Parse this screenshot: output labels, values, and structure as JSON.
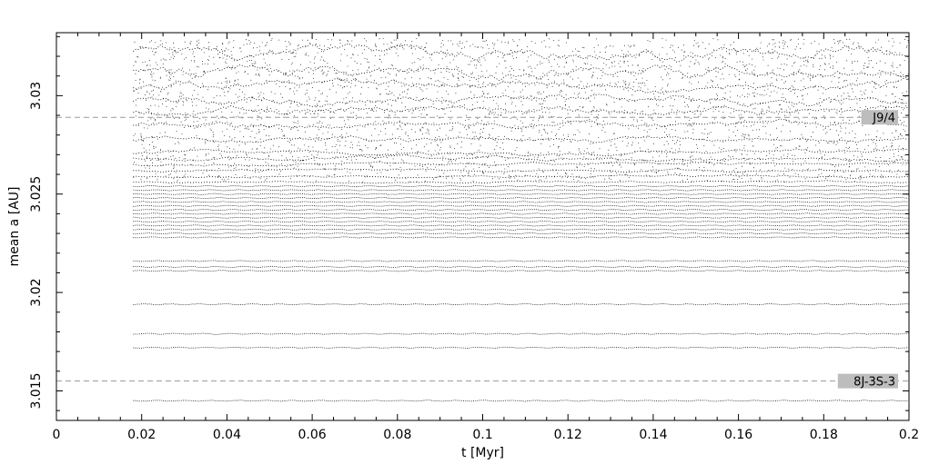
{
  "chart_data": {
    "type": "scatter",
    "title": "",
    "xlabel": "t [Myr]",
    "ylabel": "mean a [AU]",
    "xlim": [
      0,
      0.2
    ],
    "ylim": [
      3.0135,
      3.0332
    ],
    "x_ticks": [
      {
        "value": 0,
        "label": "0"
      },
      {
        "value": 0.02,
        "label": "0.02"
      },
      {
        "value": 0.04,
        "label": "0.04"
      },
      {
        "value": 0.06,
        "label": "0.06"
      },
      {
        "value": 0.08,
        "label": "0.08"
      },
      {
        "value": 0.1,
        "label": "0.1"
      },
      {
        "value": 0.12,
        "label": "0.12"
      },
      {
        "value": 0.14,
        "label": "0.14"
      },
      {
        "value": 0.16,
        "label": "0.16"
      },
      {
        "value": 0.18,
        "label": "0.18"
      },
      {
        "value": 0.2,
        "label": "0.2"
      }
    ],
    "y_ticks": [
      {
        "value": 3.015,
        "label": "3.015"
      },
      {
        "value": 3.02,
        "label": "3.02"
      },
      {
        "value": 3.025,
        "label": "3.025"
      },
      {
        "value": 3.03,
        "label": "3.03"
      }
    ],
    "grid": false,
    "data_start_t": 0.018,
    "stable_tracks_a": [
      3.0145,
      3.0172,
      3.0179,
      3.0194,
      3.0211,
      3.0213,
      3.0216,
      3.0228,
      3.023,
      3.0232,
      3.0234,
      3.0236,
      3.0238,
      3.024,
      3.0242,
      3.0244,
      3.0246,
      3.0248,
      3.025,
      3.0252,
      3.0254
    ],
    "chaotic_tracks_a": [
      3.0256,
      3.0259,
      3.0262,
      3.0265,
      3.0268,
      3.0271,
      3.0278,
      3.0285,
      3.0292,
      3.0298,
      3.0305,
      3.0312,
      3.0322
    ],
    "resonances": [
      {
        "label": "J9/4",
        "a": 3.0289
      },
      {
        "label": "8J-3S-3",
        "a": 3.0155
      }
    ]
  }
}
